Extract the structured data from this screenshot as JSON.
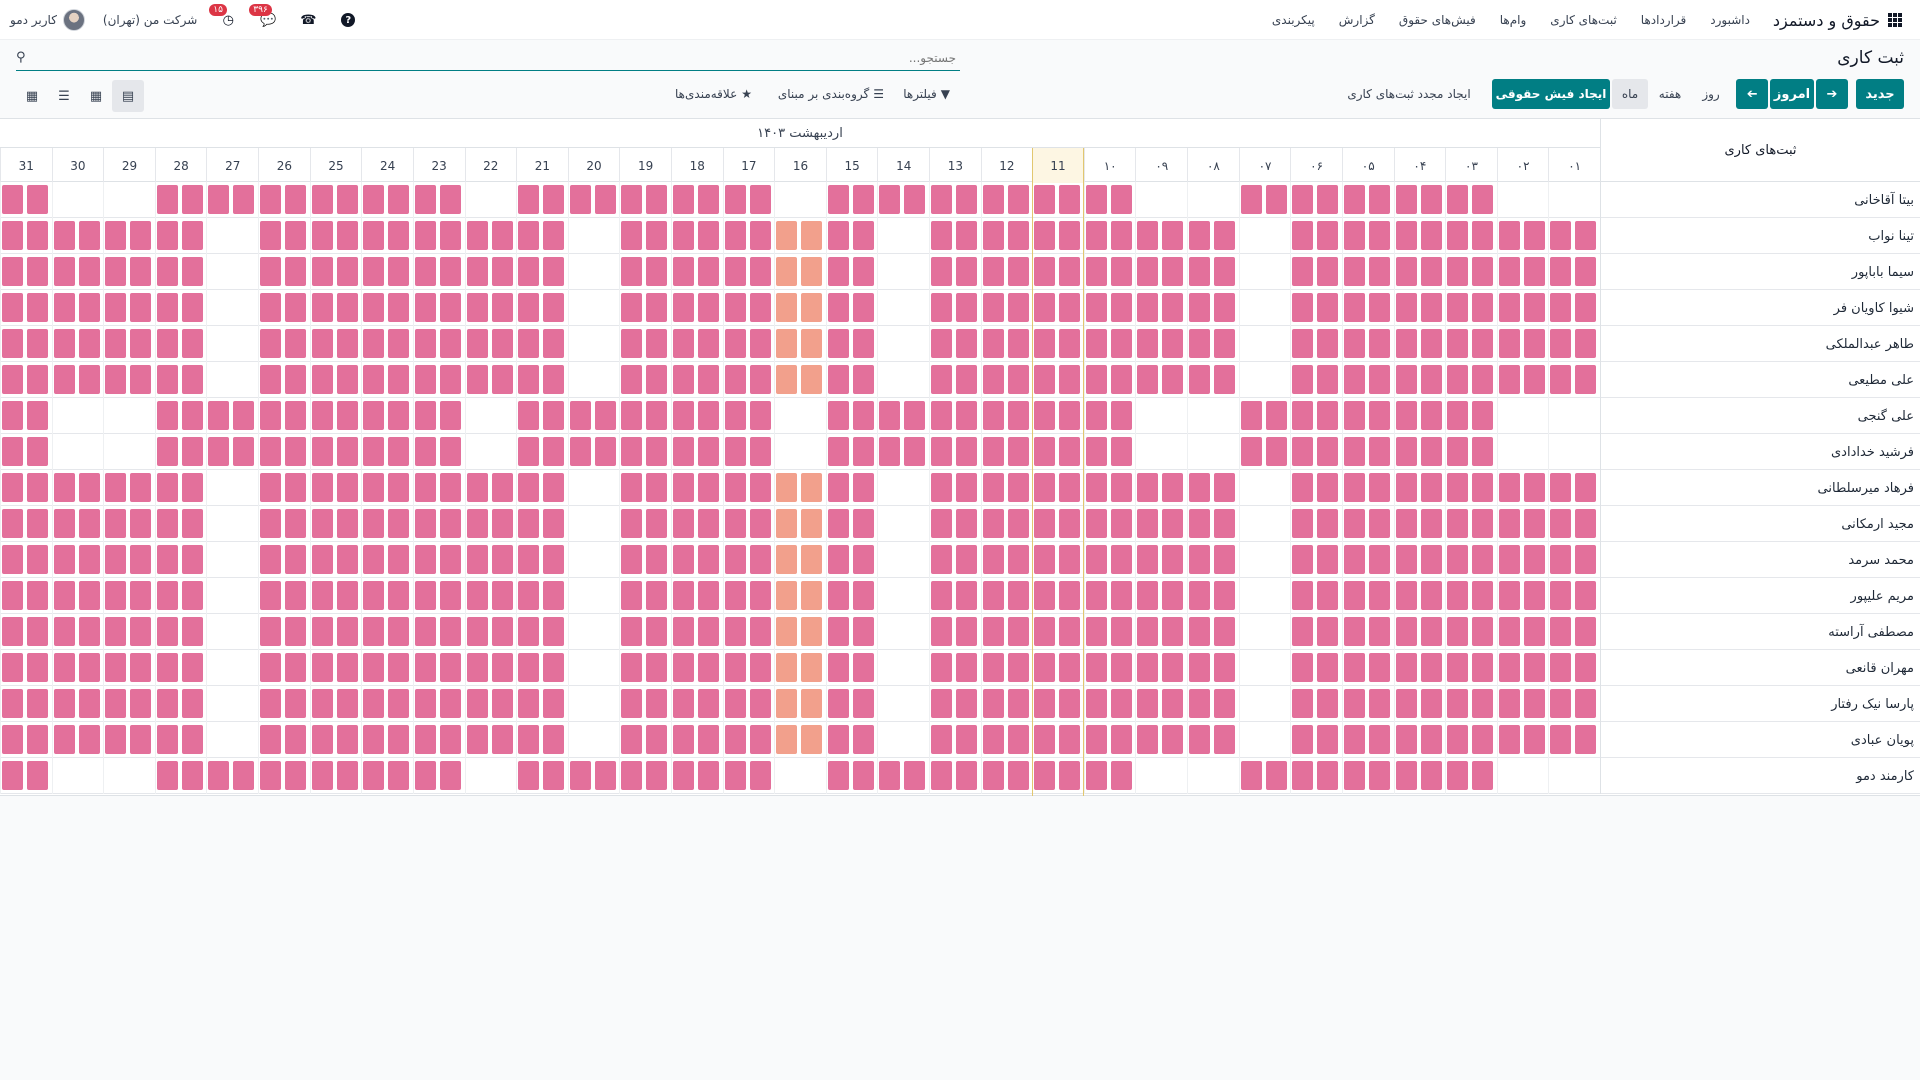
{
  "navbar": {
    "app_name": "حقوق و دستمزد",
    "menu": [
      "داشبورد",
      "قراردادها",
      "ثبت‌های کاری",
      "وام‌ها",
      "فیش‌های حقوق",
      "گزارش",
      "پیکربندی"
    ],
    "company": "شرکت من (تهران)",
    "user": "کاربر دمو",
    "messages_badge": "۳۹۶",
    "activities_badge": "۱۵",
    "help": "?"
  },
  "control": {
    "page_title": "ثبت کاری",
    "search_placeholder": "جستجو...",
    "new_button": "جدید",
    "today_button": "امروز",
    "scale_day": "روز",
    "scale_week": "هفته",
    "scale_month": "ماه",
    "payslip_button": "ایجاد فیش حقوقی",
    "regenerate_button": "ایجاد مجدد ثبت‌های کاری",
    "filters": "فیلترها",
    "groupby": "گروه‌بندی بر مبنای",
    "favorites": "علاقه‌مندی‌ها"
  },
  "gantt": {
    "rows_header": "ثبت‌های کاری",
    "month_label": "اردیبهشت ۱۴۰۳",
    "days": [
      "۰۱",
      "۰۲",
      "۰۳",
      "۰۴",
      "۰۵",
      "۰۶",
      "۰۷",
      "۰۸",
      "۰۹",
      "۱۰",
      "11",
      "12",
      "13",
      "14",
      "15",
      "16",
      "17",
      "18",
      "19",
      "20",
      "21",
      "22",
      "23",
      "24",
      "25",
      "26",
      "27",
      "28",
      "29",
      "30",
      "31"
    ],
    "today_index": 10,
    "pattern_full": [
      1,
      1,
      1,
      1,
      1,
      1,
      0,
      1,
      1,
      1,
      1,
      1,
      1,
      0,
      1,
      2,
      1,
      1,
      1,
      0,
      1,
      1,
      1,
      1,
      1,
      1,
      0,
      1,
      1,
      1,
      1
    ],
    "pattern_partial": [
      0,
      0,
      1,
      1,
      1,
      1,
      1,
      0,
      0,
      1,
      1,
      1,
      1,
      1,
      1,
      0,
      1,
      1,
      1,
      1,
      1,
      0,
      1,
      1,
      1,
      1,
      1,
      1,
      0,
      0,
      1
    ],
    "employees": [
      {
        "name": "بیتا آقاخانی",
        "pattern": "partial"
      },
      {
        "name": "تینا نواب",
        "pattern": "full"
      },
      {
        "name": "سیما باباپور",
        "pattern": "full"
      },
      {
        "name": "شیوا کاویان فر",
        "pattern": "full"
      },
      {
        "name": "طاهر عبدالملکی",
        "pattern": "full"
      },
      {
        "name": "علی مطیعی",
        "pattern": "full"
      },
      {
        "name": "علی گنجی",
        "pattern": "partial"
      },
      {
        "name": "فرشید خدادادی",
        "pattern": "partial"
      },
      {
        "name": "فرهاد میرسلطانی",
        "pattern": "full"
      },
      {
        "name": "مجید ارمکانی",
        "pattern": "full"
      },
      {
        "name": "محمد سرمد",
        "pattern": "full"
      },
      {
        "name": "مریم علیپور",
        "pattern": "full"
      },
      {
        "name": "مصطفی آراسته",
        "pattern": "full"
      },
      {
        "name": "مهران قانعی",
        "pattern": "full"
      },
      {
        "name": "پارسا نیک رفتار",
        "pattern": "full"
      },
      {
        "name": "پویان عبادی",
        "pattern": "full"
      },
      {
        "name": "کارمند دمو",
        "pattern": "partial"
      }
    ]
  },
  "colors": {
    "primary": "#017e84",
    "entry": "#e3709b",
    "entry_alt": "#f2a08c",
    "today": "#fdf6e3"
  }
}
